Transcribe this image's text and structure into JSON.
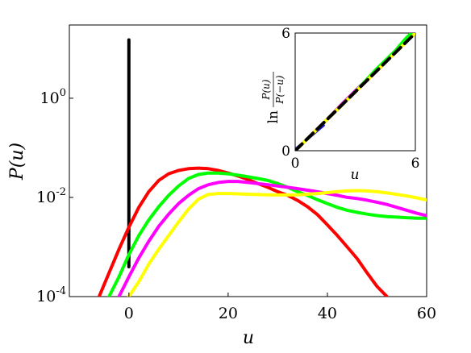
{
  "chart_data": [
    {
      "type": "line",
      "title": "",
      "xlabel": "u",
      "ylabel": "P(u)",
      "xlim": [
        -12,
        60
      ],
      "ylim": [
        0.0001,
        30
      ],
      "yscale": "log",
      "x_ticks": [
        0,
        20,
        40,
        60
      ],
      "x_tick_labels": [
        "0",
        "20",
        "40",
        "60"
      ],
      "y_ticks": [
        0.0001,
        0.01,
        1
      ],
      "y_tick_labels": [
        {
          "base": "10",
          "exp": "-4"
        },
        {
          "base": "10",
          "exp": "-2"
        },
        {
          "base": "10",
          "exp": "0"
        }
      ],
      "grid": false,
      "series": [
        {
          "color": "#000000",
          "x": [
            0,
            0
          ],
          "y": [
            0.0004,
            15
          ]
        },
        {
          "color": "#ff0000",
          "x": [
            -6,
            -4,
            -2,
            0,
            2,
            4,
            6,
            8,
            10,
            12,
            14,
            16,
            18,
            20,
            22,
            24,
            26,
            28,
            30,
            32,
            34,
            36,
            38,
            40,
            42,
            44,
            46,
            48,
            50,
            52
          ],
          "y": [
            0.0001,
            0.0003,
            0.0009,
            0.0025,
            0.0063,
            0.013,
            0.022,
            0.03,
            0.035,
            0.038,
            0.039,
            0.038,
            0.035,
            0.031,
            0.027,
            0.023,
            0.019,
            0.016,
            0.013,
            0.011,
            0.0087,
            0.0065,
            0.0045,
            0.0028,
            0.0017,
            0.001,
            0.00058,
            0.0003,
            0.00016,
            0.0001
          ]
        },
        {
          "color": "#00ff00",
          "x": [
            -4,
            -2,
            0,
            2,
            4,
            6,
            8,
            10,
            12,
            14,
            16,
            18,
            20,
            22,
            24,
            26,
            28,
            30,
            32,
            34,
            36,
            38,
            40,
            42,
            44,
            46,
            48,
            50,
            52,
            54,
            56,
            58,
            60
          ],
          "y": [
            0.0001,
            0.00025,
            0.0007,
            0.0017,
            0.0035,
            0.0065,
            0.011,
            0.017,
            0.024,
            0.029,
            0.031,
            0.031,
            0.03,
            0.028,
            0.026,
            0.024,
            0.022,
            0.019,
            0.016,
            0.013,
            0.011,
            0.009,
            0.0075,
            0.0063,
            0.0055,
            0.005,
            0.0046,
            0.0043,
            0.0041,
            0.004,
            0.0039,
            0.0038,
            0.0038
          ]
        },
        {
          "color": "#ff00ff",
          "x": [
            -2,
            0,
            2,
            4,
            6,
            8,
            10,
            12,
            14,
            16,
            18,
            20,
            22,
            24,
            26,
            28,
            30,
            32,
            34,
            36,
            38,
            40,
            42,
            44,
            46,
            48,
            50,
            52,
            54,
            56,
            58,
            60
          ],
          "y": [
            0.0001,
            0.00025,
            0.0006,
            0.0013,
            0.0026,
            0.0046,
            0.0075,
            0.011,
            0.015,
            0.018,
            0.02,
            0.021,
            0.021,
            0.02,
            0.019,
            0.018,
            0.017,
            0.016,
            0.015,
            0.014,
            0.013,
            0.012,
            0.011,
            0.01,
            0.0095,
            0.0088,
            0.008,
            0.0072,
            0.0063,
            0.0055,
            0.0048,
            0.0043
          ]
        },
        {
          "color": "#ffff00",
          "x": [
            0,
            2,
            4,
            6,
            8,
            10,
            12,
            14,
            16,
            18,
            20,
            22,
            24,
            26,
            28,
            30,
            32,
            34,
            36,
            38,
            40,
            42,
            44,
            46,
            48,
            50,
            52,
            54,
            56,
            58,
            60
          ],
          "y": [
            0.0001,
            0.0002,
            0.00045,
            0.0009,
            0.0017,
            0.0032,
            0.0058,
            0.0092,
            0.0115,
            0.012,
            0.012,
            0.0118,
            0.0116,
            0.0114,
            0.0113,
            0.0112,
            0.0112,
            0.0113,
            0.0116,
            0.012,
            0.0125,
            0.0131,
            0.0135,
            0.0137,
            0.0135,
            0.013,
            0.0123,
            0.0115,
            0.0107,
            0.0098,
            0.0089
          ]
        }
      ]
    },
    {
      "type": "line",
      "title": "",
      "xlabel": "u",
      "ylabel": "ln P(u)/P(−u)",
      "ylabel_parts": {
        "prefix": "ln",
        "numerator": "P(u)",
        "denominator": "P(−u)"
      },
      "xlim": [
        0,
        6
      ],
      "ylim": [
        0,
        6
      ],
      "x_ticks": [
        0,
        6
      ],
      "x_tick_labels": [
        "0",
        "6"
      ],
      "y_ticks": [
        0,
        6
      ],
      "y_tick_labels": [
        "0",
        "6"
      ],
      "grid": false,
      "series": [
        {
          "color": "#0000ff",
          "x": [
            0,
            0.3,
            0.6,
            1.0,
            1.4
          ],
          "y": [
            0.05,
            0.3,
            0.6,
            0.95,
            1.3
          ]
        },
        {
          "color": "#ff00ff",
          "x": [
            0,
            0.8,
            1.6,
            2.4,
            3.2,
            4.0
          ],
          "y": [
            0,
            0.8,
            1.6,
            2.45,
            3.25,
            4.0
          ]
        },
        {
          "color": "#ff0000",
          "x": [
            0,
            1.0,
            2.0,
            3.0,
            4.0,
            4.6
          ],
          "y": [
            0,
            1.0,
            2.0,
            3.0,
            4.0,
            4.6
          ]
        },
        {
          "color": "#00ff00",
          "x": [
            0,
            1.0,
            2.0,
            3.0,
            4.0,
            5.0,
            5.5,
            5.8
          ],
          "y": [
            0,
            1.0,
            2.0,
            3.0,
            4.1,
            5.1,
            5.7,
            6.0
          ]
        },
        {
          "color": "#ffff00",
          "x": [
            0,
            1.0,
            2.0,
            3.0,
            4.0,
            5.0,
            6.0
          ],
          "y": [
            0,
            1.0,
            2.0,
            3.0,
            4.0,
            5.0,
            6.0
          ]
        },
        {
          "color": "#000000",
          "dash": "dashed",
          "x": [
            0,
            6
          ],
          "y": [
            0,
            6
          ]
        }
      ]
    }
  ]
}
